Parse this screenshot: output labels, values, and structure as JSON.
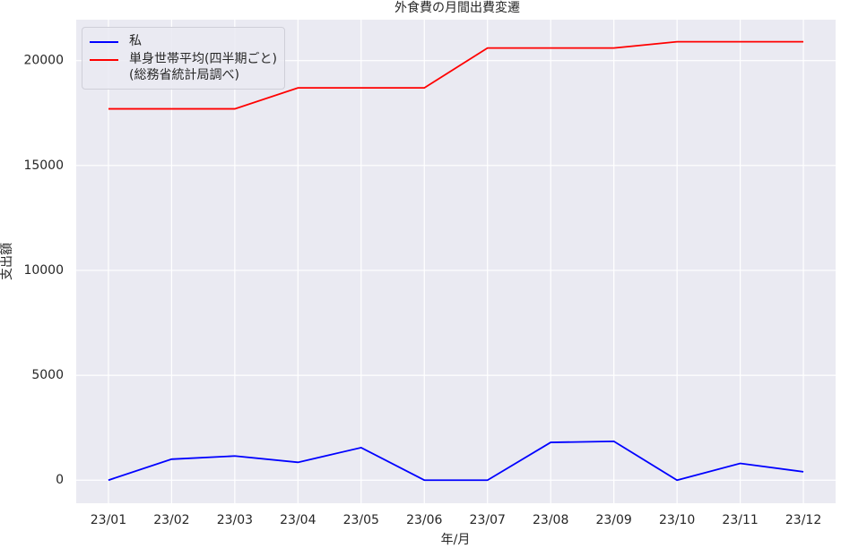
{
  "chart_data": {
    "type": "line",
    "title": "外食費の月間出費変遷",
    "x_label": "年/月",
    "y_label": "支出額",
    "categories": [
      "23/01",
      "23/02",
      "23/03",
      "23/04",
      "23/05",
      "23/06",
      "23/07",
      "23/08",
      "23/09",
      "23/10",
      "23/11",
      "23/12"
    ],
    "series": [
      {
        "name": "私",
        "color": "#0000ff",
        "values": [
          0,
          1000,
          1150,
          850,
          1550,
          0,
          0,
          1800,
          1850,
          0,
          800,
          400
        ]
      },
      {
        "name": "単身世帯平均(四半期ごと)\n(総務省統計局調べ)",
        "color": "#ff0000",
        "values": [
          17700,
          17700,
          17700,
          18700,
          18700,
          18700,
          20600,
          20600,
          20600,
          20900,
          20900,
          20900
        ]
      }
    ],
    "ylim": [
      -1100,
      21950
    ],
    "yticks": [
      0,
      5000,
      10000,
      15000,
      20000
    ],
    "grid": true,
    "legend": "upper left"
  }
}
